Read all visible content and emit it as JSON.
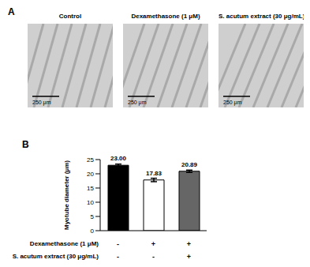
{
  "panel_labels": [
    "A",
    "B"
  ],
  "images": [
    {
      "title": "Control",
      "scale_bar": "250 μm"
    },
    {
      "title": "Dexamethasone (1 μM)",
      "scale_bar": "250 μm"
    },
    {
      "title": "S. acutum extract (30 μg/mL)",
      "scale_bar": "250 μm"
    }
  ],
  "chart_data": {
    "type": "bar",
    "y_label": "Myotube diameter (μm)",
    "categories": [
      null,
      null,
      null
    ],
    "values": [
      23,
      17.83,
      20.89
    ],
    "value_labels": [
      "23.00",
      "17.83",
      "20.89"
    ],
    "errors": [
      0.4,
      0.6,
      0.4
    ],
    "colors": [
      "#000000",
      "#ffffff",
      "#666666"
    ],
    "ylim": [
      0,
      25
    ],
    "yticks": [
      0,
      5,
      10,
      15,
      20,
      25
    ],
    "grid": false,
    "data_labels": true,
    "treatments": [
      {
        "name": "Dexamethasone (1 μM)",
        "signs": [
          "-",
          "+",
          "+"
        ]
      },
      {
        "name": "S. acutum extract (30 μg/mL)",
        "signs": [
          "-",
          "-",
          "+"
        ]
      }
    ]
  }
}
